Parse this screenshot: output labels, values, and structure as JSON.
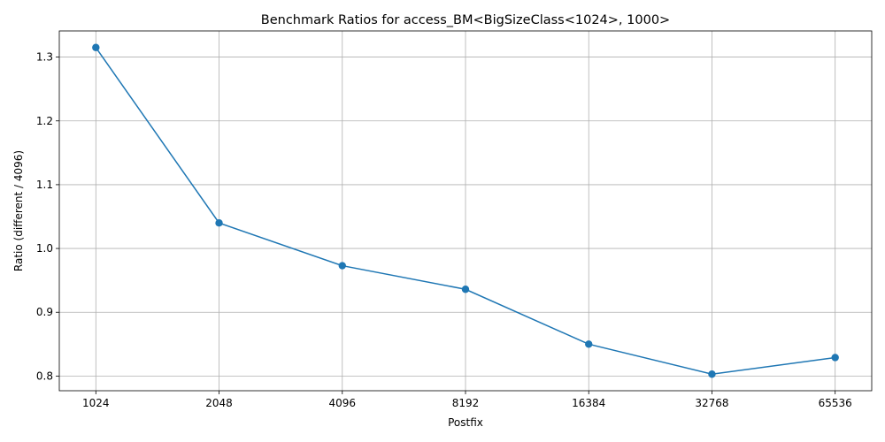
{
  "chart_data": {
    "type": "line",
    "title": "Benchmark Ratios for access_BM<BigSizeClass<1024>, 1000>",
    "xlabel": "Postfix",
    "ylabel": "Ratio (different / 4096)",
    "categories": [
      "1024",
      "2048",
      "4096",
      "8192",
      "16384",
      "32768",
      "65536"
    ],
    "series": [
      {
        "values": [
          1.315,
          1.04,
          0.973,
          0.936,
          0.85,
          0.803,
          0.829
        ],
        "color": "#1f77b4",
        "marker": "circle"
      }
    ],
    "ylim": [
      0.777,
      1.341
    ],
    "yticks": [
      0.8,
      0.9,
      1.0,
      1.1,
      1.2,
      1.3
    ],
    "ytick_labels": [
      "0.8",
      "0.9",
      "1.0",
      "1.1",
      "1.2",
      "1.3"
    ],
    "grid": true,
    "legend": false
  }
}
